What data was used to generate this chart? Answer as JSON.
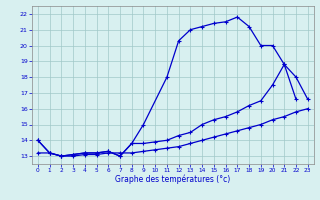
{
  "xlabel": "Graphe des températures (°c)",
  "line_a_x": [
    0,
    1,
    2,
    3,
    4,
    5,
    6,
    7,
    8,
    9,
    11,
    12,
    13,
    14,
    15,
    16,
    17,
    18,
    19,
    20,
    21,
    22
  ],
  "line_a_y": [
    14.0,
    13.2,
    13.0,
    13.1,
    13.2,
    13.2,
    13.3,
    13.0,
    13.8,
    15.0,
    18.0,
    20.3,
    21.0,
    21.2,
    21.4,
    21.5,
    21.8,
    21.2,
    20.0,
    20.0,
    18.8,
    16.6
  ],
  "line_b_x": [
    0,
    1,
    2,
    3,
    4,
    5,
    6,
    7,
    8,
    9,
    10,
    11,
    12,
    13,
    14,
    15,
    16,
    17,
    18,
    19,
    20,
    21,
    22,
    23
  ],
  "line_b_y": [
    14.0,
    13.2,
    13.0,
    13.1,
    13.2,
    13.2,
    13.3,
    13.0,
    13.8,
    13.8,
    13.9,
    14.0,
    14.3,
    14.5,
    15.0,
    15.3,
    15.5,
    15.8,
    16.2,
    16.5,
    17.5,
    18.8,
    18.0,
    16.6
  ],
  "line_c_x": [
    0,
    1,
    2,
    3,
    4,
    5,
    6,
    7,
    8,
    9,
    10,
    11,
    12,
    13,
    14,
    15,
    16,
    17,
    18,
    19,
    20,
    21,
    22,
    23
  ],
  "line_c_y": [
    13.2,
    13.2,
    13.0,
    13.0,
    13.1,
    13.1,
    13.2,
    13.2,
    13.2,
    13.3,
    13.4,
    13.5,
    13.6,
    13.8,
    14.0,
    14.2,
    14.4,
    14.6,
    14.8,
    15.0,
    15.3,
    15.5,
    15.8,
    16.0
  ],
  "ylim": [
    12.5,
    22.5
  ],
  "xlim": [
    -0.5,
    23.5
  ],
  "yticks": [
    13,
    14,
    15,
    16,
    17,
    18,
    19,
    20,
    21,
    22
  ],
  "xticks": [
    0,
    1,
    2,
    3,
    4,
    5,
    6,
    7,
    8,
    9,
    10,
    11,
    12,
    13,
    14,
    15,
    16,
    17,
    18,
    19,
    20,
    21,
    22,
    23
  ],
  "line_color": "#0000cc",
  "bg_color": "#d8f0f0",
  "grid_color": "#a0c8c8"
}
